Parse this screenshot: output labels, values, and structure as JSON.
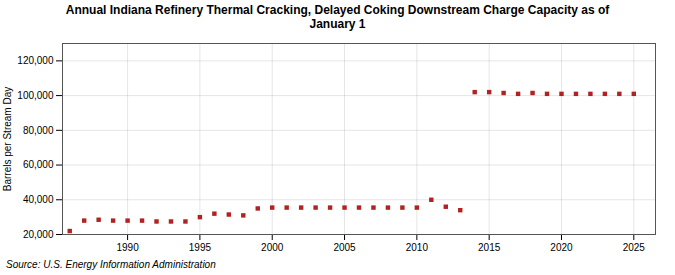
{
  "chart_data": {
    "type": "scatter",
    "title": "Annual Indiana Refinery Thermal Cracking, Delayed Coking Downstream Charge Capacity as of\nJanuary  1",
    "y_label": "Barrels per Stream Day",
    "source": "Source: U.S. Energy Information Administration",
    "x": [
      1986,
      1987,
      1988,
      1989,
      1990,
      1991,
      1992,
      1993,
      1994,
      1995,
      1996,
      1997,
      1998,
      1999,
      2000,
      2001,
      2002,
      2003,
      2004,
      2005,
      2006,
      2007,
      2008,
      2009,
      2010,
      2011,
      2012,
      2013,
      2014,
      2015,
      2016,
      2017,
      2018,
      2019,
      2020,
      2021,
      2022,
      2023,
      2024,
      2025
    ],
    "values": [
      22000,
      28000,
      28500,
      28000,
      28000,
      28000,
      27500,
      27500,
      27500,
      30000,
      32000,
      31500,
      31000,
      35000,
      35500,
      35500,
      35500,
      35500,
      35500,
      35500,
      35500,
      35500,
      35500,
      35500,
      35500,
      40000,
      36000,
      34000,
      102000,
      102000,
      101500,
      101000,
      101500,
      101000,
      101000,
      101000,
      101000,
      101000,
      101000,
      101000
    ],
    "color": "#b22222",
    "marker": "square",
    "grid": true,
    "xlim": [
      1985.5,
      2026.5
    ],
    "xticks": [
      1990,
      1995,
      2000,
      2005,
      2010,
      2015,
      2020,
      2025
    ],
    "ylim": [
      20000,
      130000
    ],
    "yticks": [
      {
        "value": 20000,
        "label": "20,000"
      },
      {
        "value": 40000,
        "label": "40,000"
      },
      {
        "value": 60000,
        "label": "60,000"
      },
      {
        "value": 80000,
        "label": "80,000"
      },
      {
        "value": 100000,
        "label": "100,000"
      },
      {
        "value": 120000,
        "label": "120,000"
      }
    ]
  }
}
